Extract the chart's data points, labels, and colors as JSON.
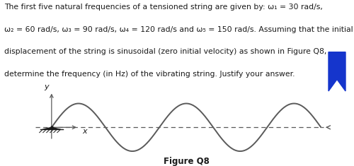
{
  "title_lines": [
    "The first five natural frequencies of a tensioned string are given by: ω₁ = 30 rad/s,",
    "ω₂ = 60 rad/s, ω₃ = 90 rad/s, ω₄ = 120 rad/s and ω₅ = 150 rad/s. Assuming that the initial",
    "displacement of the string is sinusoidal (zero initial velocity) as shown in Figure Q8,",
    "determine the frequency (in Hz) of the vibrating string. Justify your answer."
  ],
  "figure_caption": "Figure Q8",
  "background_color": "#ffffff",
  "text_color": "#1a1a1a",
  "wave_color": "#5a5a5a",
  "axis_color": "#5a5a5a",
  "wave_cycles": 2.5,
  "title_fontsize": 7.8,
  "caption_fontsize": 8.5,
  "bookmark_color": "#1535cc",
  "axis_label_fontsize": 8
}
